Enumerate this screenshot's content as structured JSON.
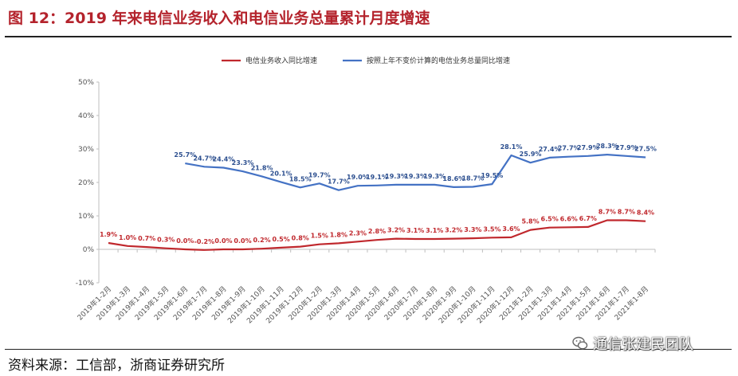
{
  "title": "图 12：2019 年来电信业务收入和电信业务总量累计月度增速",
  "source": "资料来源：工信部，浙商证券研究所",
  "watermark": "通信张建民团队",
  "colors": {
    "red": "#c0282d",
    "blue": "#4472c4",
    "title": "#b4232c"
  },
  "chart_data": {
    "type": "line",
    "categories": [
      "2019年1-2月",
      "2019年1-3月",
      "2019年1-4月",
      "2019年1-5月",
      "2019年1-6月",
      "2019年1-7月",
      "2019年1-8月",
      "2019年1-9月",
      "2019年1-10月",
      "2019年1-11月",
      "2019年1-12月",
      "2020年1-2月",
      "2020年1-3月",
      "2020年1-4月",
      "2020年1-5月",
      "2020年1-6月",
      "2020年1-7月",
      "2020年1-8月",
      "2020年1-9月",
      "2020年1-10月",
      "2020年1-11月",
      "2020年1-12月",
      "2021年1-2月",
      "2021年1-3月",
      "2021年1-4月",
      "2021年1-5月",
      "2021年1-6月",
      "2021年1-7月",
      "2021年1-8月"
    ],
    "ylim": [
      -10,
      50
    ],
    "yticks": [
      "-10%",
      "0%",
      "10%",
      "20%",
      "30%",
      "40%",
      "50%"
    ],
    "legend_position": "top",
    "series": [
      {
        "name": "电信业务收入同比增速",
        "color": "#c0282d",
        "values": [
          1.9,
          1.0,
          0.7,
          0.3,
          0.0,
          -0.2,
          0.0,
          0.0,
          0.2,
          0.5,
          0.8,
          1.5,
          1.8,
          2.3,
          2.8,
          3.2,
          3.1,
          3.1,
          3.2,
          3.3,
          3.5,
          3.6,
          5.8,
          6.5,
          6.6,
          6.7,
          8.7,
          8.7,
          8.4
        ],
        "labels": [
          "1.9%",
          "1.0%",
          "0.7%",
          "0.3%",
          "0.0%",
          "-0.2%",
          "0.0%",
          "0.0%",
          "0.2%",
          "0.5%",
          "0.8%",
          "1.5%",
          "1.8%",
          "2.3%",
          "2.8%",
          "3.2%",
          "3.1%",
          "3.1%",
          "3.2%",
          "3.3%",
          "3.5%",
          "3.6%",
          "5.8%",
          "6.5%",
          "6.6%",
          "6.7%",
          "8.7%",
          "8.7%",
          "8.4%"
        ]
      },
      {
        "name": "按照上年不变价计算的电信业务总量同比增速",
        "color": "#4472c4",
        "values": [
          null,
          null,
          null,
          null,
          25.7,
          24.7,
          24.4,
          23.3,
          21.8,
          20.1,
          18.5,
          19.7,
          17.7,
          19.0,
          19.1,
          19.3,
          19.3,
          19.3,
          18.6,
          18.7,
          19.5,
          28.1,
          25.9,
          27.4,
          27.7,
          27.9,
          28.3,
          27.9,
          27.5
        ],
        "labels": [
          null,
          null,
          null,
          null,
          "25.7%",
          "24.7%",
          "24.4%",
          "23.3%",
          "21.8%",
          "20.1%",
          "18.5%",
          "19.7%",
          "17.7%",
          "19.0%",
          "19.1%",
          "19.3%",
          "19.3%",
          "19.3%",
          "18.6%",
          "18.7%",
          "19.5%",
          "28.1%",
          "25.9%",
          "27.4%",
          "27.7%",
          "27.9%",
          "28.3%",
          "27.9%",
          "27.5%"
        ]
      }
    ]
  }
}
